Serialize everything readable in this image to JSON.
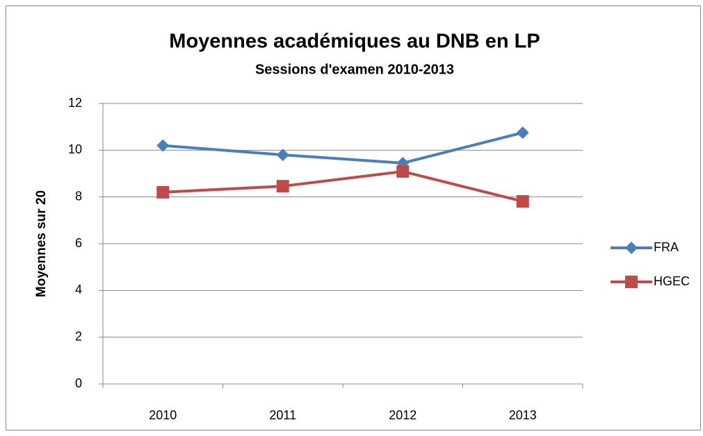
{
  "chart_data": {
    "type": "line",
    "title": "Moyennes académiques au DNB en LP",
    "subtitle": "Sessions d'examen 2010-2013",
    "y_label": "Moyennes sur 20",
    "categories": [
      "2010",
      "2011",
      "2012",
      "2013"
    ],
    "series": [
      {
        "name": "FRA",
        "color": "#4a7ebb",
        "marker": "diamond",
        "values": [
          10.2,
          9.8,
          9.45,
          10.75
        ]
      },
      {
        "name": "HGEC",
        "color": "#be4b48",
        "marker": "square",
        "values": [
          8.2,
          8.46,
          9.09,
          7.81
        ]
      }
    ],
    "ylim": [
      0,
      12
    ],
    "yticks": [
      0,
      2,
      4,
      6,
      8,
      10,
      12
    ],
    "grid": true,
    "legend": "right"
  }
}
